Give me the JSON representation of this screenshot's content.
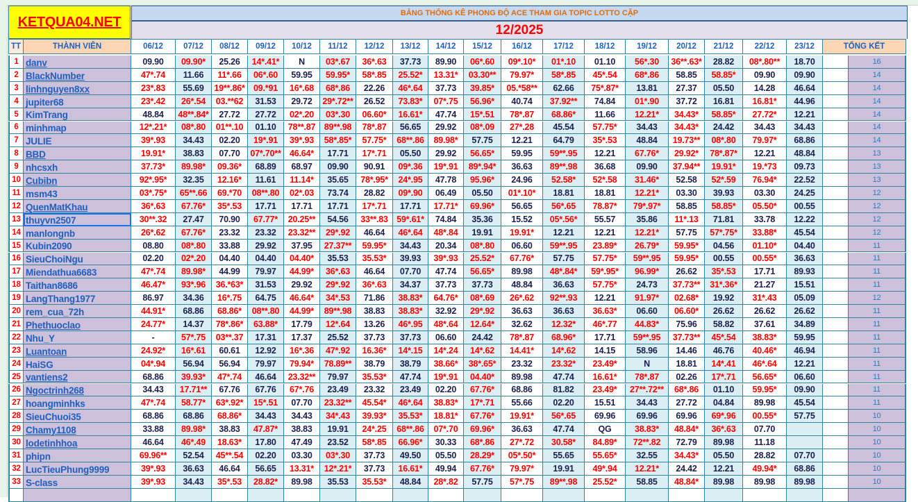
{
  "logo": "KETQUA04.NET",
  "title": "BẢNG THỐNG KÊ PHONG ĐỘ ACE THAM GIA TOPIC  LOTTO CẶP",
  "month": "12/2025",
  "headers": {
    "tt": "TT",
    "member": "THÀNH VIÊN",
    "total": "TỔNG KẾT",
    "dates": [
      "06/12",
      "07/12",
      "08/12",
      "09/12",
      "10/12",
      "11/12",
      "12/12",
      "13/12",
      "14/12",
      "15/12",
      "16/12",
      "17/12",
      "18/12",
      "19/12",
      "20/12",
      "21/12",
      "22/12",
      "23/12"
    ]
  },
  "colors": {
    "hit": "#ff0000",
    "miss": "#1a1f4d",
    "member_bg": "#ccc0da",
    "logo_bg": "#ffff00"
  },
  "rows": [
    {
      "tt": "1",
      "name": "danv",
      "link": true,
      "total": "16",
      "v": [
        "09.90",
        "09.90*",
        "25.26",
        "14*.41*",
        "N",
        "03*.67",
        "36*.63",
        "37.73",
        "89.90",
        "06*.60",
        "09*.10*",
        "01*.10",
        "01.10",
        "56*.30",
        "36**.63*",
        "28.82",
        "08*.80**",
        "18.70"
      ]
    },
    {
      "tt": "2",
      "name": "BlackNumber",
      "link": true,
      "total": "14",
      "v": [
        "47*.74",
        "11.66",
        "11*.66",
        "06*.60",
        "59.95",
        "59.95*",
        "58*.85",
        "25.52*",
        "13.31*",
        "03.30**",
        "79.97*",
        "58*.85",
        "45*.54",
        "68*.86",
        "58.85",
        "58.85*",
        "09.90",
        "09.90"
      ]
    },
    {
      "tt": "3",
      "name": "linhnguyen8xx",
      "link": true,
      "total": "14",
      "v": [
        "23*.83",
        "55.69",
        "19**.86*",
        "09.*91",
        "16*.68",
        "68*.86",
        "22.26",
        "46*.64",
        "37.73",
        "39.85*",
        "05.*58**",
        "62.66",
        "75*.87*",
        "13.81",
        "27.37",
        "05.50",
        "14.28",
        "46.64"
      ]
    },
    {
      "tt": "4",
      "name": "jupiter68",
      "link": false,
      "total": "14",
      "v": [
        "23*.42",
        "26*.54",
        "03.**62",
        "31.53",
        "29.72",
        "29*.72**",
        "26.52",
        "73.83*",
        "07*.75",
        "56.96*",
        "40.74",
        "37.92**",
        "74.84",
        "01*.90",
        "37.72",
        "16.81",
        "16.81*",
        "44.96"
      ]
    },
    {
      "tt": "5",
      "name": "KimTrang",
      "link": false,
      "total": "14",
      "v": [
        "48.84",
        "48**.84*",
        "27.72",
        "27.72",
        "02*.20",
        "03*.30",
        "06.60*",
        "16.61*",
        "47.74",
        "15*.51",
        "78*.87",
        "68.86*",
        "11.66",
        "12.21*",
        "34.43*",
        "58.85*",
        "27.72*",
        "12.21"
      ]
    },
    {
      "tt": "6",
      "name": "minhmap",
      "link": false,
      "total": "14",
      "v": [
        "12*.21*",
        "08*.80",
        "01**.10",
        "01.10",
        "78**.87",
        "89**.98",
        "78*.87",
        "56.65",
        "29.92",
        "08*.09",
        "27*.28",
        "45.54",
        "57.75*",
        "34.43",
        "34.43*",
        "24.42",
        "34.43",
        "34.43"
      ]
    },
    {
      "tt": "7",
      "name": "JULIE",
      "link": false,
      "total": "14",
      "v": [
        "39*.93",
        "34.43",
        "02.20",
        "19*.91",
        "39*.93",
        "58*.85*",
        "57.75*",
        "68**.86",
        "89.98*",
        "57.75",
        "12.21",
        "64.79",
        "35*.53",
        "48.84",
        "19.73**",
        "08*.80",
        "79.97*",
        "68.86"
      ]
    },
    {
      "tt": "8",
      "name": "BBD",
      "link": true,
      "total": "13",
      "v": [
        "19.91*",
        "38.83",
        "07.70",
        "07*.70**",
        "46.64*",
        "17.71",
        "17*.71",
        "05.50",
        "29.92",
        "56.65*",
        "59.95",
        "59**.95",
        "12.21",
        "67.76*",
        "29.92*",
        "78*.87*",
        "12.21",
        "48.84"
      ]
    },
    {
      "tt": "9",
      "name": "nhcsxh",
      "link": false,
      "total": "13",
      "v": [
        "37.73*",
        "89.98*",
        "09.36*",
        "68.89",
        "68.97",
        "09.90",
        "90.91",
        "09*.36",
        "19*.91",
        "89*.94*",
        "36.63",
        "89**.98",
        "36.68",
        "09.90",
        "37.94**",
        "19.91*",
        "19.*73",
        "09.73"
      ]
    },
    {
      "tt": "10",
      "name": "Cubibn",
      "link": true,
      "total": "13",
      "v": [
        "92*.95*",
        "32.35",
        "12.16*",
        "11.61",
        "11.14*",
        "35.65",
        "78*.95*",
        "24*.95",
        "47.78",
        "95.96*",
        "24.96",
        "52.58*",
        "52*.58",
        "31.46*",
        "52.58",
        "52*.59",
        "76.94*",
        "22.52"
      ]
    },
    {
      "tt": "11",
      "name": "msm43",
      "link": false,
      "total": "12",
      "v": [
        "03*.75*",
        "65**.66",
        "69.*70",
        "08**.80",
        "02*.03",
        "73.74",
        "28.82",
        "09*.90",
        "06.49",
        "05.50",
        "01*.10*",
        "18.81",
        "18.81",
        "12.21*",
        "03.30",
        "39.93",
        "03.30",
        "24.25"
      ]
    },
    {
      "tt": "12",
      "name": "QuenMatKhau",
      "link": true,
      "total": "12",
      "v": [
        "36*.63",
        "67.76*",
        "35*.53",
        "17.71",
        "17.71",
        "17.71",
        "17*.71",
        "17.71",
        "17.71*",
        "69.96*",
        "56.65",
        "56*.65",
        "78.87*",
        "79*.97*",
        "58.85",
        "58.85*",
        "05.50*",
        "00.55"
      ]
    },
    {
      "tt": "13",
      "name": "thuyvn2507",
      "link": false,
      "selected": true,
      "total": "12",
      "v": [
        "30**.32",
        "27.47",
        "70.90",
        "67.77*",
        "20.25**",
        "54.56",
        "33**.83",
        "59*.61*",
        "74.84",
        "35.36",
        "15.52",
        "05*.56*",
        "55.57",
        "35.86",
        "11*.13",
        "71.81",
        "33.78",
        "12.22"
      ]
    },
    {
      "tt": "14",
      "name": "manlongnb",
      "link": false,
      "total": "12",
      "v": [
        "26*.62",
        "67.76*",
        "23.32",
        "23.32",
        "23.32**",
        "29*.92",
        "46.64",
        "46*.64",
        "48*.84",
        "19.91",
        "19.91*",
        "12.21",
        "12.21",
        "12.21*",
        "57.75",
        "57*.75*",
        "33.88*",
        "45.54"
      ]
    },
    {
      "tt": "15",
      "name": "Kubin2090",
      "link": false,
      "total": "11",
      "v": [
        "08.80",
        "08*.80",
        "33.88",
        "29.92",
        "37.95",
        "27.37**",
        "59.95*",
        "34.43",
        "20.34",
        "08*.80",
        "06.60",
        "59**.95",
        "23.89*",
        "26.79*",
        "59.95*",
        "04.56",
        "01.10*",
        "04.40"
      ]
    },
    {
      "tt": "16",
      "name": "SieuChoiNgu",
      "link": false,
      "total": "11",
      "v": [
        "02.20",
        "02*.20",
        "04.40",
        "04.40",
        "04.40*",
        "35.53",
        "35.53*",
        "39.93",
        "39*.93",
        "25.52*",
        "67.76*",
        "57.75",
        "57.75*",
        "59**.95",
        "59.95*",
        "00.55",
        "00.55*",
        "36.63"
      ]
    },
    {
      "tt": "17",
      "name": "Miendathua6683",
      "link": false,
      "total": "11",
      "v": [
        "47*.74",
        "89.98*",
        "44.99",
        "79.97",
        "44.99*",
        "36*.63",
        "46.64",
        "07.70",
        "47.74",
        "56.65*",
        "89.98",
        "48*.84*",
        "59*.95*",
        "96.99*",
        "26.62",
        "35*.53",
        "17.71",
        "89.93"
      ]
    },
    {
      "tt": "18",
      "name": "Taithan8686",
      "link": false,
      "total": "11",
      "v": [
        "46.47*",
        "93*.96",
        "36.*63*",
        "31.53",
        "29.92",
        "29*.92",
        "36*.63",
        "34.37",
        "37.73",
        "37.73",
        "48.84",
        "36.63",
        "57.75*",
        "24.73",
        "37.73**",
        "31*.36*",
        "21.27",
        "15.51"
      ]
    },
    {
      "tt": "19",
      "name": "LangThang1977",
      "link": false,
      "total": "12",
      "v": [
        "86.97",
        "34.36",
        "16*.75",
        "64.75",
        "46.64*",
        "34*.53",
        "71.86",
        "38.83*",
        "64.76*",
        "08*.69",
        "26*.62",
        "92**.93",
        "12.21",
        "91.97*",
        "02.68*",
        "19.92",
        "31*.43",
        "05.09"
      ]
    },
    {
      "tt": "20",
      "name": "rem_cua_72h",
      "link": false,
      "total": "11",
      "v": [
        "44.91*",
        "68.86",
        "68.86*",
        "08**.80",
        "44.99*",
        "89**.98",
        "38.83",
        "38.83*",
        "32.92",
        "29*.92",
        "36.63",
        "36.63",
        "36.63*",
        "06.60",
        "06.60*",
        "26.62",
        "26.62",
        "26.62"
      ]
    },
    {
      "tt": "21",
      "name": "Phethuoclao",
      "link": true,
      "total": "11",
      "v": [
        "24.77*",
        "14.37",
        "78*.86*",
        "63.88*",
        "17.79",
        "12*.64",
        "13.26",
        "46*.95",
        "48*.64",
        "12.64*",
        "32.62",
        "12.32*",
        "46*.77",
        "44.83*",
        "75.96",
        "58.82",
        "37.61",
        "34.89"
      ]
    },
    {
      "tt": "22",
      "name": "Nhu_Y",
      "link": false,
      "total": "11",
      "v": [
        "-",
        "57*.75",
        "03**.37",
        "17.31",
        "17.37",
        "25.52",
        "37.73",
        "37.73",
        "06.60",
        "24.42",
        "78*.87",
        "68.96*",
        "17.71",
        "59**.95",
        "37.73**",
        "45*.54",
        "38.83*",
        "59.95"
      ]
    },
    {
      "tt": "23",
      "name": "Luantoan",
      "link": true,
      "total": "11",
      "v": [
        "24.92*",
        "16*.61",
        "60.61",
        "12.92",
        "16*.36",
        "47*.92",
        "16.36*",
        "14*.15",
        "14*.24",
        "14*.62",
        "14.41*",
        "14*.62",
        "14.15",
        "58.96",
        "14.46",
        "46.76",
        "40.46*",
        "46.94"
      ]
    },
    {
      "tt": "24",
      "name": "HaiSG",
      "link": false,
      "total": "11",
      "v": [
        "04*.94",
        "56.94",
        "56.94",
        "79.97",
        "79.94*",
        "78.89**",
        "38.79",
        "38.79",
        "38.66*",
        "38*.65*",
        "23.32",
        "23.32*",
        "23.49*",
        "N",
        "18.81",
        "14*.41",
        "46*.64",
        "12.21"
      ]
    },
    {
      "tt": "25",
      "name": "vantiens2",
      "link": true,
      "total": "11",
      "v": [
        "68.86",
        "39.93*",
        "47*.74",
        "46.64",
        "23.32**",
        "79.97",
        "35.53*",
        "47.74",
        "19*.91",
        "04.40*",
        "89.98",
        "47.74",
        "16.61*",
        "78*.87",
        "02.26",
        "17*.71",
        "56.65*",
        "06.60"
      ]
    },
    {
      "tt": "26",
      "name": "Ngoctrinh268",
      "link": true,
      "total": "11",
      "v": [
        "34.43",
        "17.71**",
        "67.76",
        "67.76",
        "67*.76",
        "23.49",
        "23.32",
        "23.49",
        "02.20",
        "67.76*",
        "68.86",
        "81.82",
        "23.49*",
        "27**.72**",
        "68*.86",
        "01.10",
        "59.95*",
        "09.90"
      ]
    },
    {
      "tt": "27",
      "name": "hoangminhks",
      "link": false,
      "total": "11",
      "v": [
        "47*.74",
        "58.77*",
        "63*.92*",
        "15*.51",
        "07.70",
        "23.32**",
        "45.54*",
        "46*.64",
        "38.83*",
        "17*.71",
        "55.66",
        "02.20",
        "15.51",
        "34.43",
        "27.72",
        "04.84",
        "89.98",
        "45.54"
      ]
    },
    {
      "tt": "28",
      "name": "SieuChuoi35",
      "link": false,
      "total": "10",
      "v": [
        "68.86",
        "68.86",
        "68.86*",
        "34.43",
        "34.43",
        "34*.43",
        "39.93*",
        "35.53*",
        "18.81*",
        "67.76*",
        "19.91*",
        "56*.65",
        "69.96",
        "69.96",
        "69.96",
        "69*.96",
        "00.55*",
        "57.75"
      ]
    },
    {
      "tt": "29",
      "name": "Chamy1108",
      "link": true,
      "total": "10",
      "v": [
        "33.88",
        "89.98*",
        "38.83",
        "47.87*",
        "38.83",
        "19.91",
        "24*.25",
        "68**.86",
        "07*.70",
        "69.96*",
        "36.63",
        "47.74",
        "QG",
        "38.83*",
        "48.84*",
        "36*.63",
        "07.70",
        ""
      ]
    },
    {
      "tt": "30",
      "name": "lodetinhhoa",
      "link": true,
      "total": "10",
      "v": [
        "46.64",
        "46*.49",
        "18.63*",
        "17.80",
        "47.49",
        "23.52",
        "58*.85",
        "66.96*",
        "30.33",
        "68*.86",
        "27*.72",
        "30.58*",
        "84.89*",
        "72**.82",
        "72.79",
        "89.98",
        "11.18",
        ""
      ]
    },
    {
      "tt": "31",
      "name": "phipn",
      "link": false,
      "total": "10",
      "v": [
        "69.96**",
        "52.54",
        "45**.54",
        "02.20",
        "03.30",
        "03*.30",
        "37.73",
        "49.50",
        "05.50",
        "28.29*",
        "05*.50*",
        "55.65",
        "55.65*",
        "32.55",
        "34.43*",
        "05.50",
        "28.82",
        "07.70"
      ]
    },
    {
      "tt": "32",
      "name": "LucTieuPhung9999",
      "link": false,
      "total": "10",
      "v": [
        "39*.93",
        "36.63",
        "46.64",
        "56.65",
        "13.31*",
        "12*.21*",
        "37.73",
        "16.61*",
        "49.94",
        "67.76*",
        "79.97*",
        "19.91",
        "49*.94",
        "12.21*",
        "24.42",
        "12.21",
        "49.94*",
        "68.86"
      ]
    },
    {
      "tt": "33",
      "name": "S-class",
      "link": false,
      "total": "10",
      "v": [
        "39*.93",
        "34.43",
        "35*.53",
        "28.82*",
        "89.98",
        "35.53",
        "35.53*",
        "48.84",
        "28*.82",
        "57.75",
        "57*.75",
        "89**.98",
        "25.52*",
        "58.85",
        "48.84*",
        "89.98",
        "89.98",
        "89.98"
      ]
    }
  ]
}
